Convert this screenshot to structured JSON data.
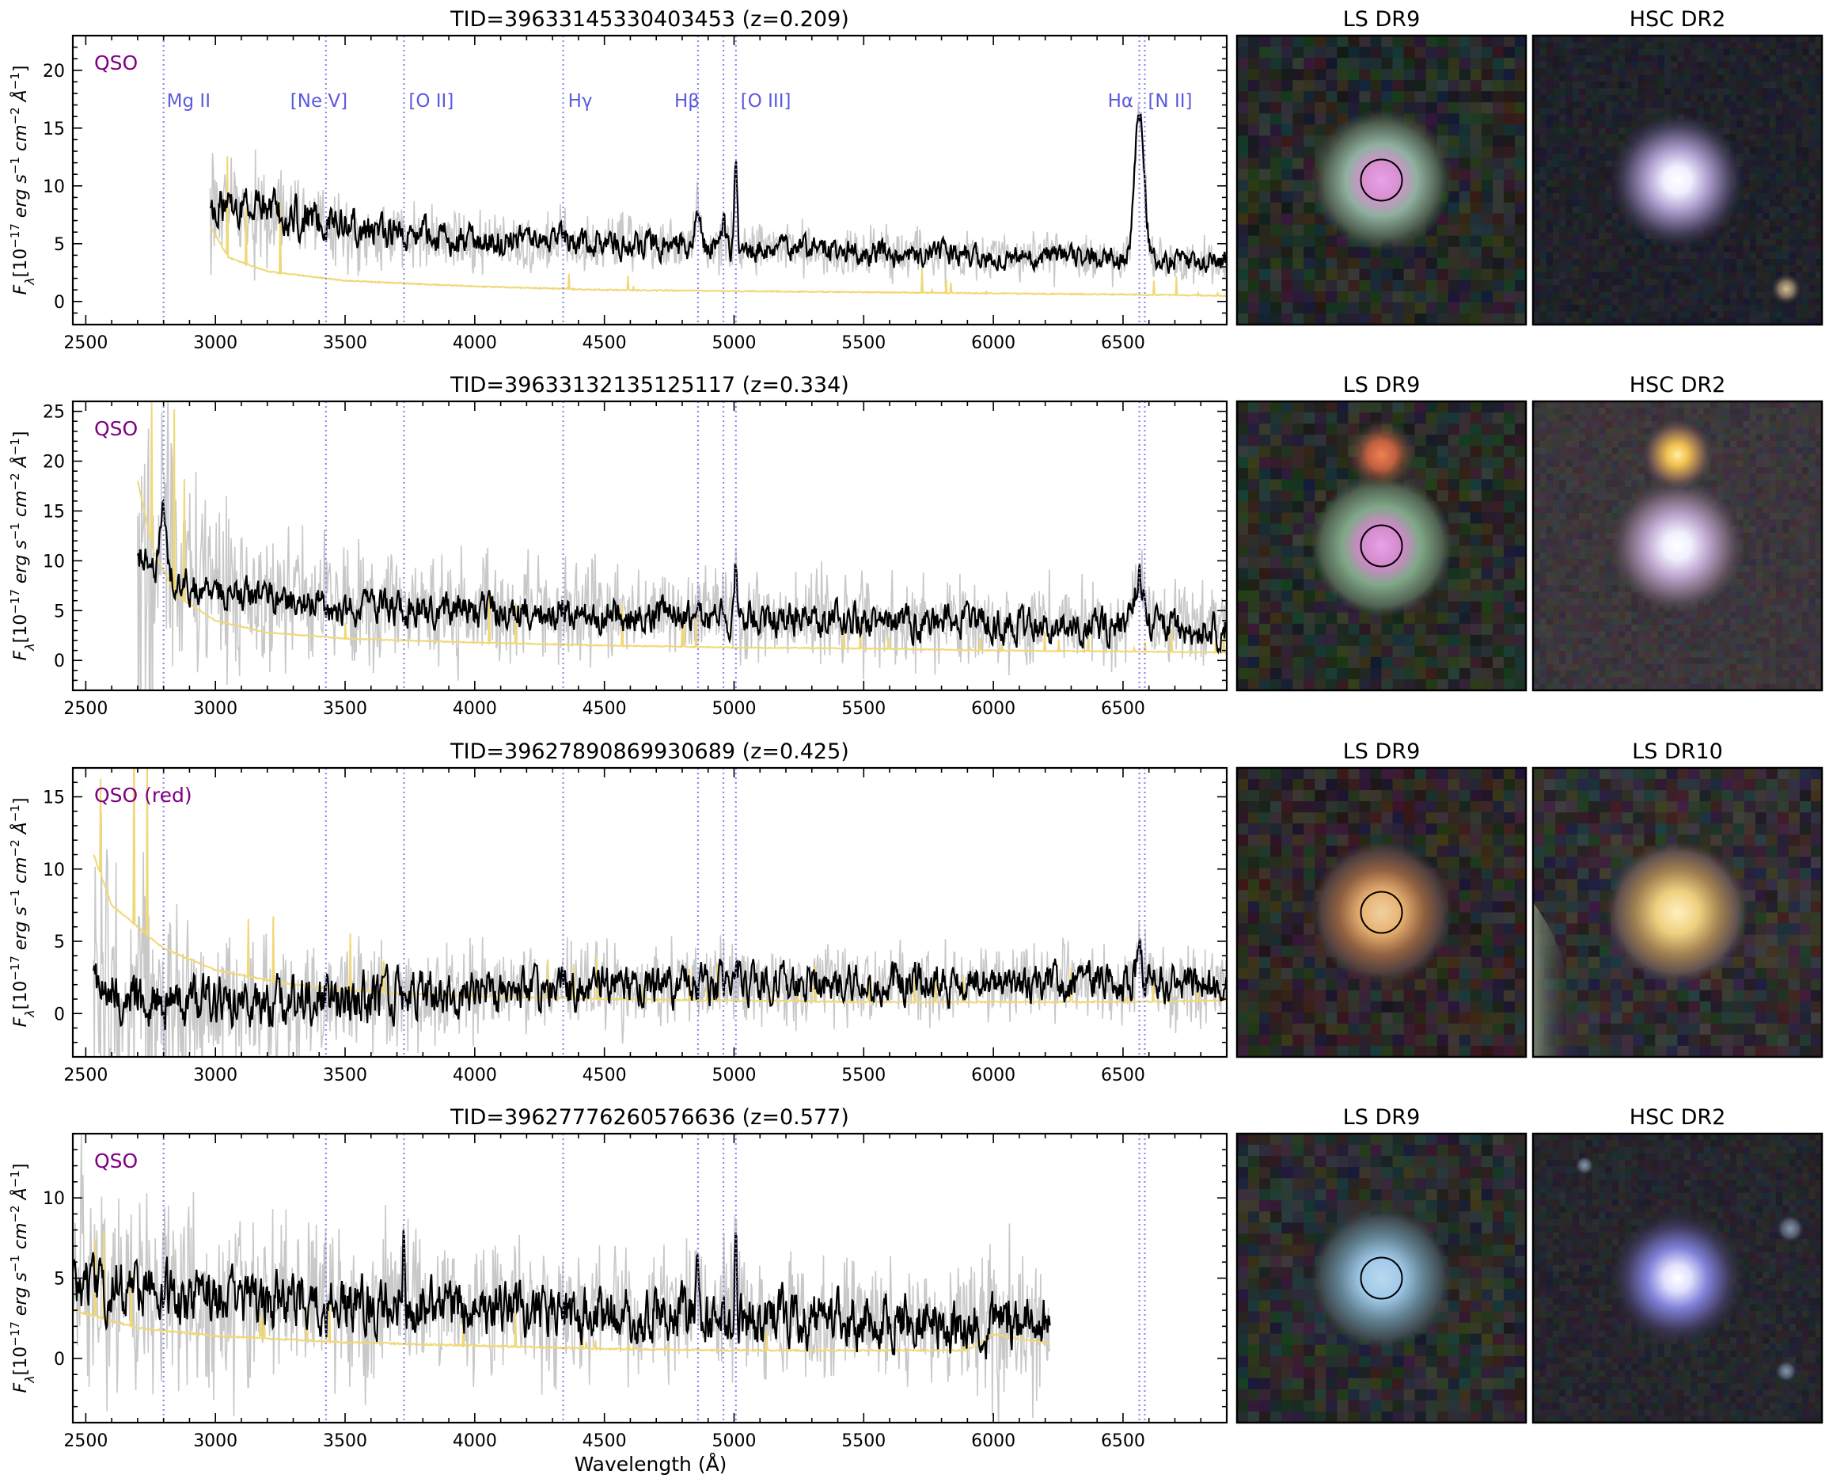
{
  "figure": {
    "xlabel": "Wavelength (Å)",
    "ylabel_main": "F",
    "ylabel_sub": "λ",
    "ylabel_units": "[10",
    "ylabel_exp": "−17",
    "ylabel_rest": " erg s",
    "ylabel_exp2": "−1",
    "ylabel_rest2": " cm",
    "ylabel_exp3": "−2",
    "ylabel_rest3": " Å",
    "ylabel_exp4": "−1",
    "ylabel_close": "]"
  },
  "lines": [
    {
      "label": "Mg II",
      "wl": 2800
    },
    {
      "label": "[Ne V]",
      "wl": 3426
    },
    {
      "label": "[O II]",
      "wl": 3727
    },
    {
      "label": "Hγ",
      "wl": 4341
    },
    {
      "label": "Hβ",
      "wl": 4861
    },
    {
      "label": "",
      "wl": 4959
    },
    {
      "label": "[O III]",
      "wl": 5007
    },
    {
      "label": "Hα",
      "wl": 6563
    },
    {
      "label": "[N II]",
      "wl": 6584
    }
  ],
  "colors": {
    "data_gray": "#c8c8c8",
    "model_black": "#000000",
    "error_yellow": "#f0d878",
    "line_marker": "#8a8aee",
    "label_blue": "#5a5ae0",
    "class_purple": "#800080"
  },
  "chart_data": [
    {
      "type": "line",
      "title": "TID=39633145330403453 (z=0.209)",
      "class_label": "QSO",
      "show_line_labels": true,
      "xlim": [
        2450,
        6900
      ],
      "ylim": [
        -2,
        23
      ],
      "xticks": [
        2500,
        3000,
        3500,
        4000,
        4500,
        5000,
        5500,
        6000,
        6500
      ],
      "yticks": [
        0,
        5,
        10,
        15,
        20
      ],
      "x_start": 2980,
      "x_end": 6900,
      "continuum": {
        "x": [
          2980,
          3100,
          3300,
          3600,
          4000,
          4500,
          5000,
          5500,
          6000,
          6500,
          6900
        ],
        "y": [
          8.5,
          8.0,
          7.3,
          6.2,
          5.3,
          5.0,
          4.7,
          4.3,
          4.0,
          3.7,
          3.3
        ]
      },
      "error": {
        "x": [
          2980,
          3050,
          3200,
          3500,
          4000,
          4500,
          5000,
          5500,
          6000,
          6500,
          6900
        ],
        "y": [
          6.5,
          3.8,
          2.6,
          1.8,
          1.3,
          1.0,
          0.9,
          0.8,
          0.7,
          0.6,
          0.5
        ]
      },
      "emission": [
        {
          "wl": 4861,
          "amp": 3.8,
          "w": 10
        },
        {
          "wl": 4959,
          "amp": 2.2,
          "w": 5
        },
        {
          "wl": 5007,
          "amp": 7.5,
          "w": 5
        },
        {
          "wl": 4341,
          "amp": 0.8,
          "w": 10
        },
        {
          "wl": 6563,
          "amp": 13.0,
          "w": 18
        }
      ],
      "noise": 1.8,
      "thumbnails": [
        {
          "title": "LS DR9",
          "style": "pink",
          "circle": true
        },
        {
          "title": "HSC DR2",
          "style": "white",
          "circle": false,
          "extra": "corner"
        }
      ]
    },
    {
      "type": "line",
      "title": "TID=39633132135125117 (z=0.334)",
      "class_label": "QSO",
      "show_line_labels": false,
      "xlim": [
        2450,
        6900
      ],
      "ylim": [
        -3,
        26
      ],
      "xticks": [
        2500,
        3000,
        3500,
        4000,
        4500,
        5000,
        5500,
        6000,
        6500
      ],
      "yticks": [
        0,
        5,
        10,
        15,
        20,
        25
      ],
      "x_start": 2700,
      "x_end": 6900,
      "continuum": {
        "x": [
          2700,
          2760,
          2850,
          3000,
          3300,
          3600,
          4000,
          4500,
          5000,
          5500,
          6000,
          6500,
          6900
        ],
        "y": [
          10.5,
          10.0,
          8.0,
          7.0,
          5.8,
          5.2,
          5.0,
          4.7,
          4.4,
          4.0,
          3.7,
          3.4,
          3.0
        ]
      },
      "error": {
        "x": [
          2700,
          2760,
          2850,
          3000,
          3200,
          3500,
          4000,
          4500,
          5000,
          5500,
          6000,
          6500,
          6900
        ],
        "y": [
          18.0,
          11.0,
          6.5,
          4.0,
          2.8,
          2.2,
          1.8,
          1.5,
          1.3,
          1.2,
          1.0,
          0.9,
          0.8
        ]
      },
      "emission": [
        {
          "wl": 2800,
          "amp": 7.0,
          "w": 10
        },
        {
          "wl": 4861,
          "amp": 1.5,
          "w": 10
        },
        {
          "wl": 5007,
          "amp": 6.0,
          "w": 5
        },
        {
          "wl": 4341,
          "amp": 1.0,
          "w": 10
        },
        {
          "wl": 6563,
          "amp": 5.0,
          "w": 18
        }
      ],
      "noise": 3.0,
      "thumbnails": [
        {
          "title": "LS DR9",
          "style": "pink2",
          "circle": true
        },
        {
          "title": "HSC DR2",
          "style": "white2",
          "circle": false
        }
      ]
    },
    {
      "type": "line",
      "title": "TID=39627890869930689 (z=0.425)",
      "class_label": "QSO (red)",
      "show_line_labels": false,
      "xlim": [
        2450,
        6900
      ],
      "ylim": [
        -3,
        17
      ],
      "xticks": [
        2500,
        3000,
        3500,
        4000,
        4500,
        5000,
        5500,
        6000,
        6500
      ],
      "yticks": [
        0,
        5,
        10,
        15
      ],
      "x_start": 2530,
      "x_end": 6900,
      "continuum": {
        "x": [
          2530,
          2700,
          3000,
          3500,
          4000,
          4500,
          5000,
          5500,
          6000,
          6500,
          6900
        ],
        "y": [
          2.5,
          0.8,
          0.8,
          1.0,
          1.5,
          1.9,
          2.1,
          2.1,
          2.1,
          2.2,
          2.1
        ]
      },
      "error": {
        "x": [
          2530,
          2600,
          2800,
          3000,
          3300,
          3600,
          4000,
          4500,
          5000,
          5500,
          6000,
          6500,
          6900
        ],
        "y": [
          11.0,
          7.5,
          4.5,
          3.0,
          2.0,
          1.5,
          1.2,
          1.0,
          0.9,
          0.8,
          0.8,
          0.8,
          0.9
        ]
      },
      "emission": [
        {
          "wl": 5007,
          "amp": 1.0,
          "w": 6
        },
        {
          "wl": 6563,
          "amp": 2.0,
          "w": 12
        }
      ],
      "noise": 2.2,
      "thumbnails": [
        {
          "title": "LS DR9",
          "style": "orange",
          "circle": true
        },
        {
          "title": "LS DR10",
          "style": "orange2",
          "circle": false,
          "extra": "edge"
        }
      ]
    },
    {
      "type": "line",
      "title": "TID=39627776260576636 (z=0.577)",
      "class_label": "QSO",
      "show_line_labels": false,
      "xlim": [
        2450,
        6900
      ],
      "ylim": [
        -4,
        14
      ],
      "xticks": [
        2500,
        3000,
        3500,
        4000,
        4500,
        5000,
        5500,
        6000,
        6500
      ],
      "yticks": [
        0,
        5,
        10
      ],
      "x_start": 2450,
      "x_end": 6220,
      "continuum": {
        "x": [
          2450,
          2800,
          3200,
          3600,
          4000,
          4500,
          5000,
          5500,
          6000,
          6220
        ],
        "y": [
          4.5,
          3.9,
          3.5,
          3.3,
          3.1,
          2.8,
          2.5,
          2.3,
          2.1,
          2.0
        ]
      },
      "error": {
        "x": [
          2450,
          2700,
          3000,
          3500,
          4000,
          4500,
          5000,
          5500,
          5900,
          6000,
          6220
        ],
        "y": [
          3.0,
          1.9,
          1.4,
          1.0,
          0.8,
          0.6,
          0.5,
          0.5,
          0.5,
          1.5,
          0.9
        ]
      },
      "emission": [
        {
          "wl": 3727,
          "amp": 3.5,
          "w": 4
        },
        {
          "wl": 4861,
          "amp": 3.5,
          "w": 6
        },
        {
          "wl": 4959,
          "amp": 1.8,
          "w": 4
        },
        {
          "wl": 5007,
          "amp": 5.8,
          "w": 4
        },
        {
          "wl": 2800,
          "amp": 1.0,
          "w": 10
        }
      ],
      "noise": 3.5,
      "thumbnails": [
        {
          "title": "LS DR9",
          "style": "blue",
          "circle": true
        },
        {
          "title": "HSC DR2",
          "style": "blue2",
          "circle": false,
          "extra": "dots"
        }
      ]
    }
  ]
}
